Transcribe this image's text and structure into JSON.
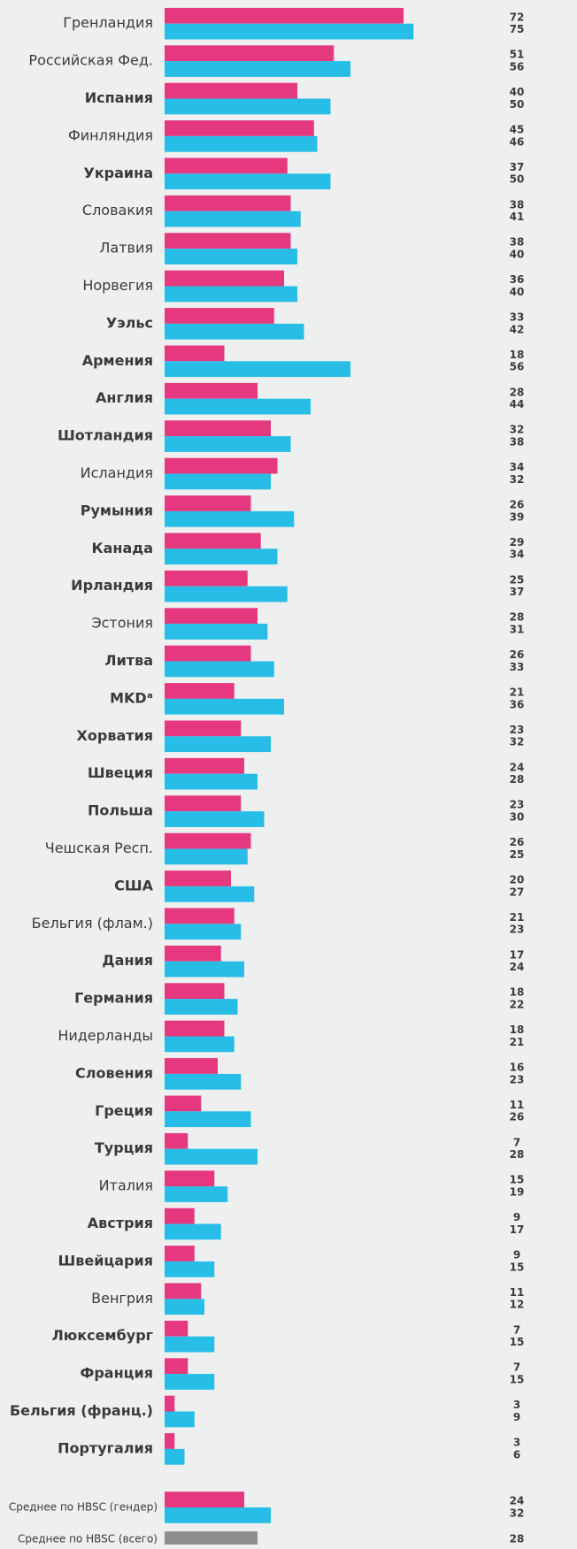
{
  "chart_data": [
    {
      "type": "bar",
      "orientation": "horizontal",
      "categories": [
        "Гренландия",
        "Российская Фед.",
        "Испания",
        "Финляндия",
        "Украина",
        "Словакия",
        "Латвия",
        "Норвегия",
        "Уэльс",
        "Армения",
        "Англия",
        "Шотландия",
        "Исландия",
        "Румыния",
        "Канада",
        "Ирландия",
        "Эстония",
        "Литва",
        "MKDᵃ",
        "Хорватия",
        "Швеция",
        "Польша",
        "Чешская Респ.",
        "США",
        "Бельгия (флам.)",
        "Дания",
        "Германия",
        "Нидерланды",
        "Словения",
        "Греция",
        "Турция",
        "Италия",
        "Австрия",
        "Швейцария",
        "Венгрия",
        "Люксембург",
        "Франция",
        "Бельгия (франц.)",
        "Португалия"
      ],
      "bold": [
        false,
        false,
        true,
        false,
        true,
        false,
        false,
        false,
        true,
        true,
        true,
        true,
        false,
        true,
        true,
        true,
        false,
        true,
        true,
        true,
        true,
        true,
        false,
        true,
        false,
        true,
        true,
        false,
        true,
        true,
        true,
        false,
        true,
        true,
        false,
        true,
        true,
        true,
        true
      ],
      "series": [
        {
          "color": "#e5387f",
          "values": [
            72,
            51,
            40,
            45,
            37,
            38,
            38,
            36,
            33,
            18,
            28,
            32,
            34,
            26,
            29,
            25,
            28,
            26,
            21,
            23,
            24,
            23,
            26,
            20,
            21,
            17,
            18,
            18,
            16,
            11,
            7,
            15,
            9,
            9,
            11,
            7,
            7,
            3,
            3
          ]
        },
        {
          "color": "#27bde6",
          "values": [
            75,
            56,
            50,
            46,
            50,
            41,
            40,
            40,
            42,
            56,
            44,
            38,
            32,
            39,
            34,
            37,
            31,
            33,
            36,
            32,
            28,
            30,
            25,
            27,
            23,
            24,
            22,
            21,
            23,
            26,
            28,
            19,
            17,
            15,
            12,
            15,
            15,
            9,
            6
          ]
        }
      ]
    },
    {
      "type": "bar",
      "orientation": "horizontal",
      "categories": [
        "Среднее по HBSC (гендер)",
        "Среднее по HBSC (всего)"
      ],
      "series": [
        {
          "color": "#e5387f",
          "values": [
            24,
            null
          ]
        },
        {
          "color": "#27bde6",
          "values": [
            32,
            null
          ]
        },
        {
          "color": "#8e8e8e",
          "values": [
            null,
            28
          ]
        }
      ]
    }
  ]
}
